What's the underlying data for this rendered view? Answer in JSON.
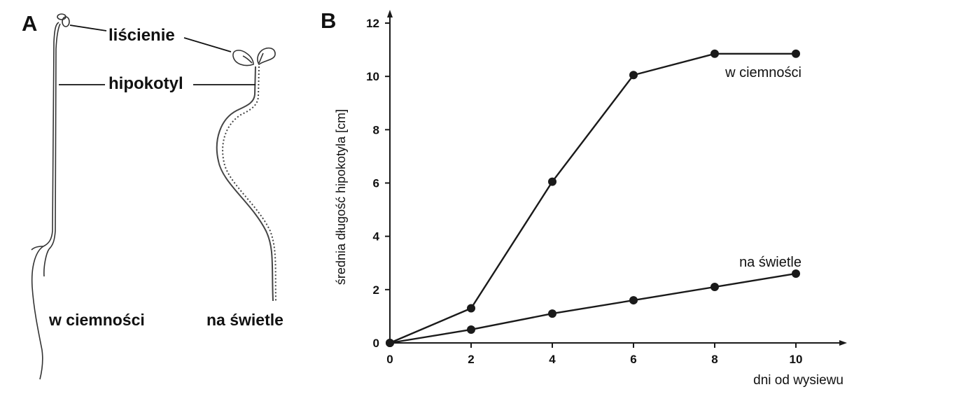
{
  "panels": {
    "a": "A",
    "b": "B"
  },
  "illustration": {
    "labels": {
      "cotyledons": "liścienie",
      "hypocotyl": "hipokotyl"
    },
    "captions": {
      "dark": "w ciemności",
      "light": "na świetle"
    }
  },
  "chart_data": {
    "type": "line",
    "xlabel": "dni od wysiewu",
    "ylabel": "średnia długość hipokotyla [cm]",
    "xlim": [
      0,
      11
    ],
    "ylim": [
      0,
      12
    ],
    "xticks": [
      0,
      2,
      4,
      6,
      8,
      10
    ],
    "yticks": [
      0,
      2,
      4,
      6,
      8,
      10,
      12
    ],
    "grid": false,
    "series": [
      {
        "name": "w ciemności",
        "x": [
          0,
          2,
          4,
          6,
          8,
          10
        ],
        "y": [
          0,
          1.3,
          6.05,
          10.05,
          10.85,
          10.85
        ]
      },
      {
        "name": "na świetle",
        "x": [
          0,
          2,
          4,
          6,
          8,
          10
        ],
        "y": [
          0,
          0.5,
          1.1,
          1.6,
          2.1,
          2.6
        ]
      }
    ],
    "colors": {
      "line": "#1a1a1a",
      "marker": "#1a1a1a",
      "axis": "#1a1a1a"
    }
  }
}
